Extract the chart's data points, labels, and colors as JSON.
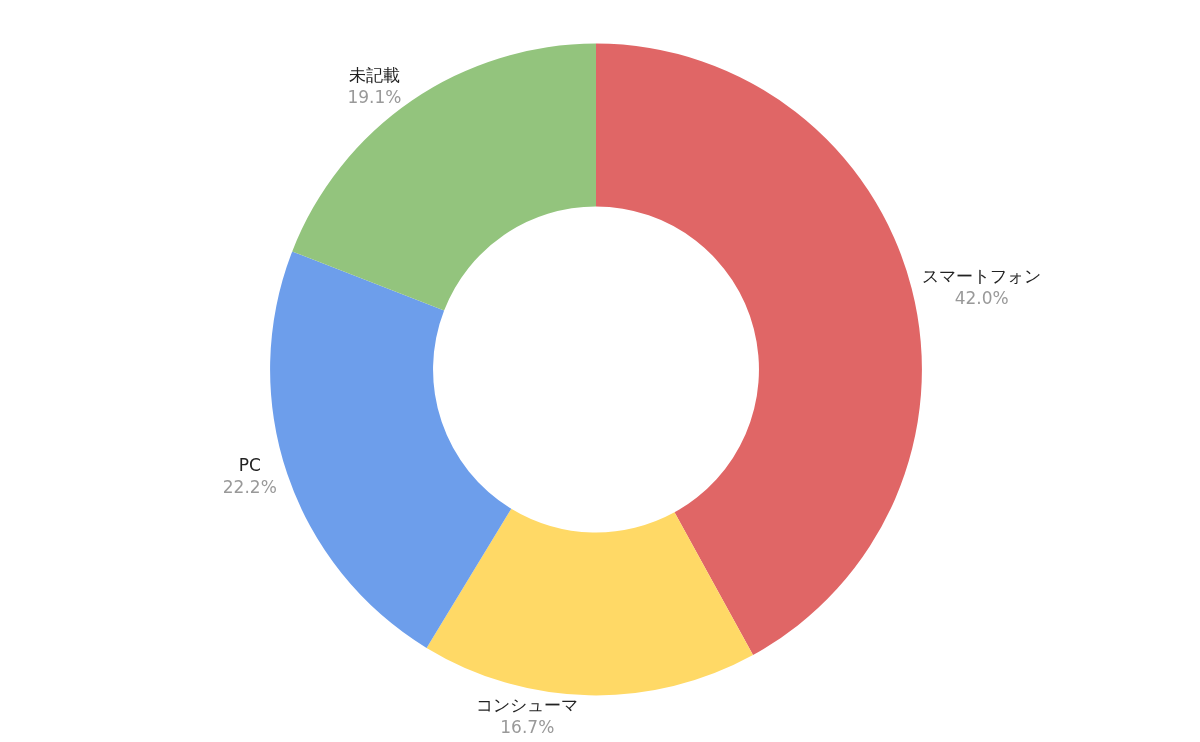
{
  "chart_data": {
    "type": "donut",
    "categories": [
      "スマートフォン",
      "コンシューマ",
      "PC",
      "未記載"
    ],
    "values": [
      42.0,
      16.7,
      22.2,
      19.1
    ],
    "colors": [
      "#e06666",
      "#ffd966",
      "#6d9eeb",
      "#93c47d"
    ],
    "value_labels": [
      "42.0%",
      "16.7%",
      "22.2%",
      "19.1%"
    ],
    "legend": false
  }
}
